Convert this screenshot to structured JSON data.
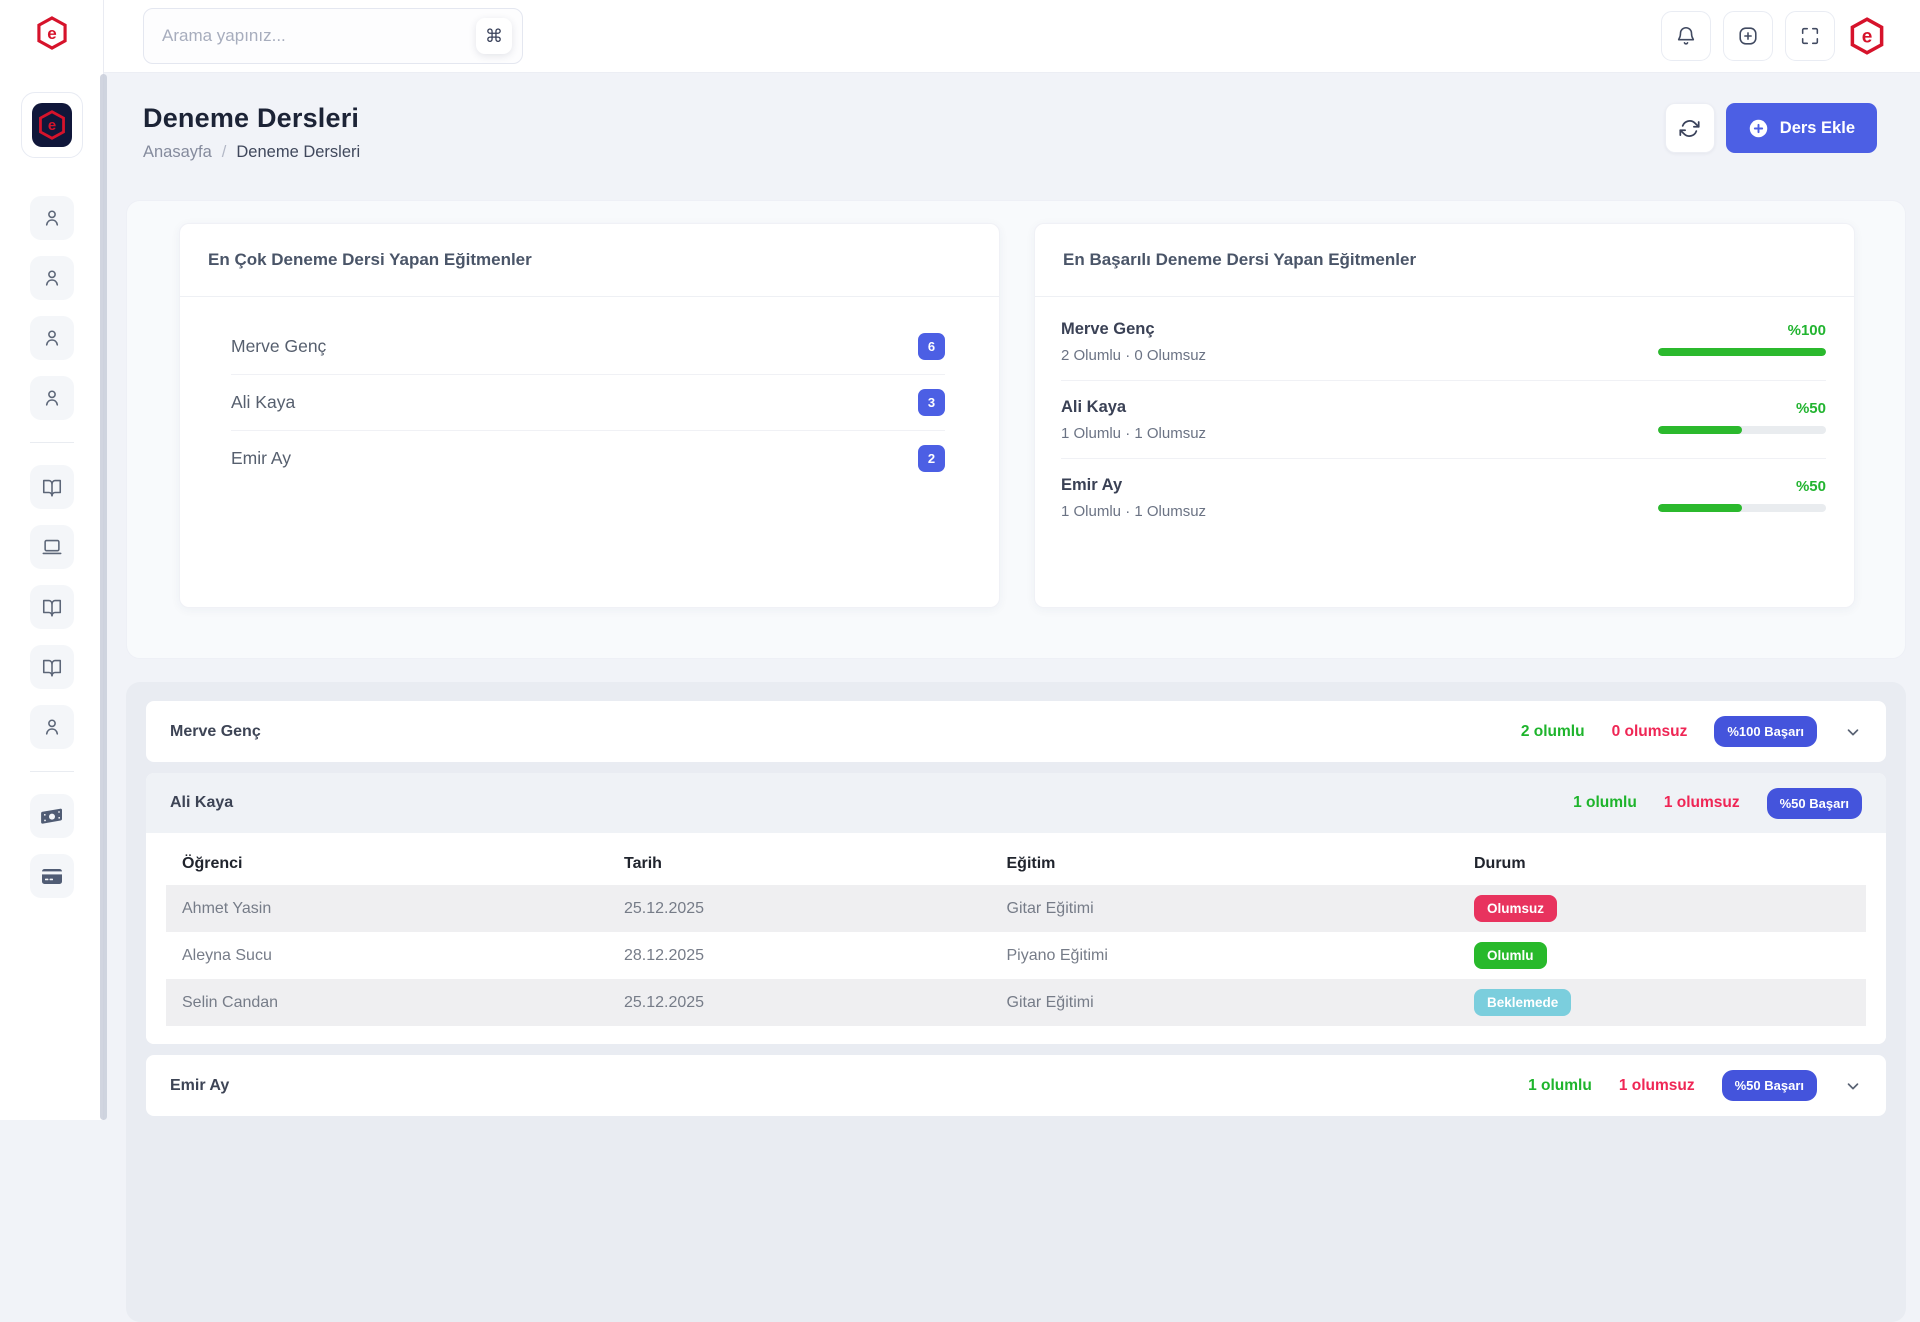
{
  "topbar": {
    "search_placeholder": "Arama yapınız...",
    "shortcut_key": "⌘"
  },
  "page": {
    "title": "Deneme Dersleri",
    "breadcrumb_home": "Anasayfa",
    "breadcrumb_separator": "/",
    "breadcrumb_current": "Deneme Dersleri",
    "add_button_label": "Ders Ekle"
  },
  "cards": {
    "most_lessons": {
      "title": "En Çok Deneme Dersi Yapan Eğitmenler",
      "items": [
        {
          "name": "Merve Genç",
          "count": "6"
        },
        {
          "name": "Ali Kaya",
          "count": "3"
        },
        {
          "name": "Emir Ay",
          "count": "2"
        }
      ]
    },
    "most_successful": {
      "title": "En Başarılı Deneme Dersi Yapan Eğitmenler",
      "items": [
        {
          "name": "Merve Genç",
          "stats": "2 Olumlu · 0 Olumsuz",
          "percent_label": "%100",
          "percent": 100
        },
        {
          "name": "Ali Kaya",
          "stats": "1 Olumlu · 1 Olumsuz",
          "percent_label": "%50",
          "percent": 50
        },
        {
          "name": "Emir Ay",
          "stats": "1 Olumlu · 1 Olumsuz",
          "percent_label": "%50",
          "percent": 50
        }
      ]
    }
  },
  "accordion": {
    "items": [
      {
        "name": "Merve Genç",
        "positive": "2 olumlu",
        "negative": "0 olumsuz",
        "badge": "%100 Başarı"
      },
      {
        "name": "Ali Kaya",
        "positive": "1 olumlu",
        "negative": "1 olumsuz",
        "badge": "%50 Başarı",
        "table": {
          "headers": [
            "Öğrenci",
            "Tarih",
            "Eğitim",
            "Durum"
          ],
          "rows": [
            {
              "student": "Ahmet Yasin",
              "date": "25.12.2025",
              "course": "Gitar Eğitimi",
              "status": "Olumsuz",
              "status_kind": "danger"
            },
            {
              "student": "Aleyna Sucu",
              "date": "28.12.2025",
              "course": "Piyano Eğitimi",
              "status": "Olumlu",
              "status_kind": "success"
            },
            {
              "student": "Selin Candan",
              "date": "25.12.2025",
              "course": "Gitar Eğitimi",
              "status": "Beklemede",
              "status_kind": "pending"
            }
          ]
        }
      },
      {
        "name": "Emir Ay",
        "positive": "1 olumlu",
        "negative": "1 olumsuz",
        "badge": "%50 Başarı"
      }
    ]
  },
  "colors": {
    "primary": "#4c5fe4",
    "success": "#2bb92d",
    "danger": "#e8335e",
    "pending": "#7bcedd",
    "brand_red": "#d6132b"
  }
}
